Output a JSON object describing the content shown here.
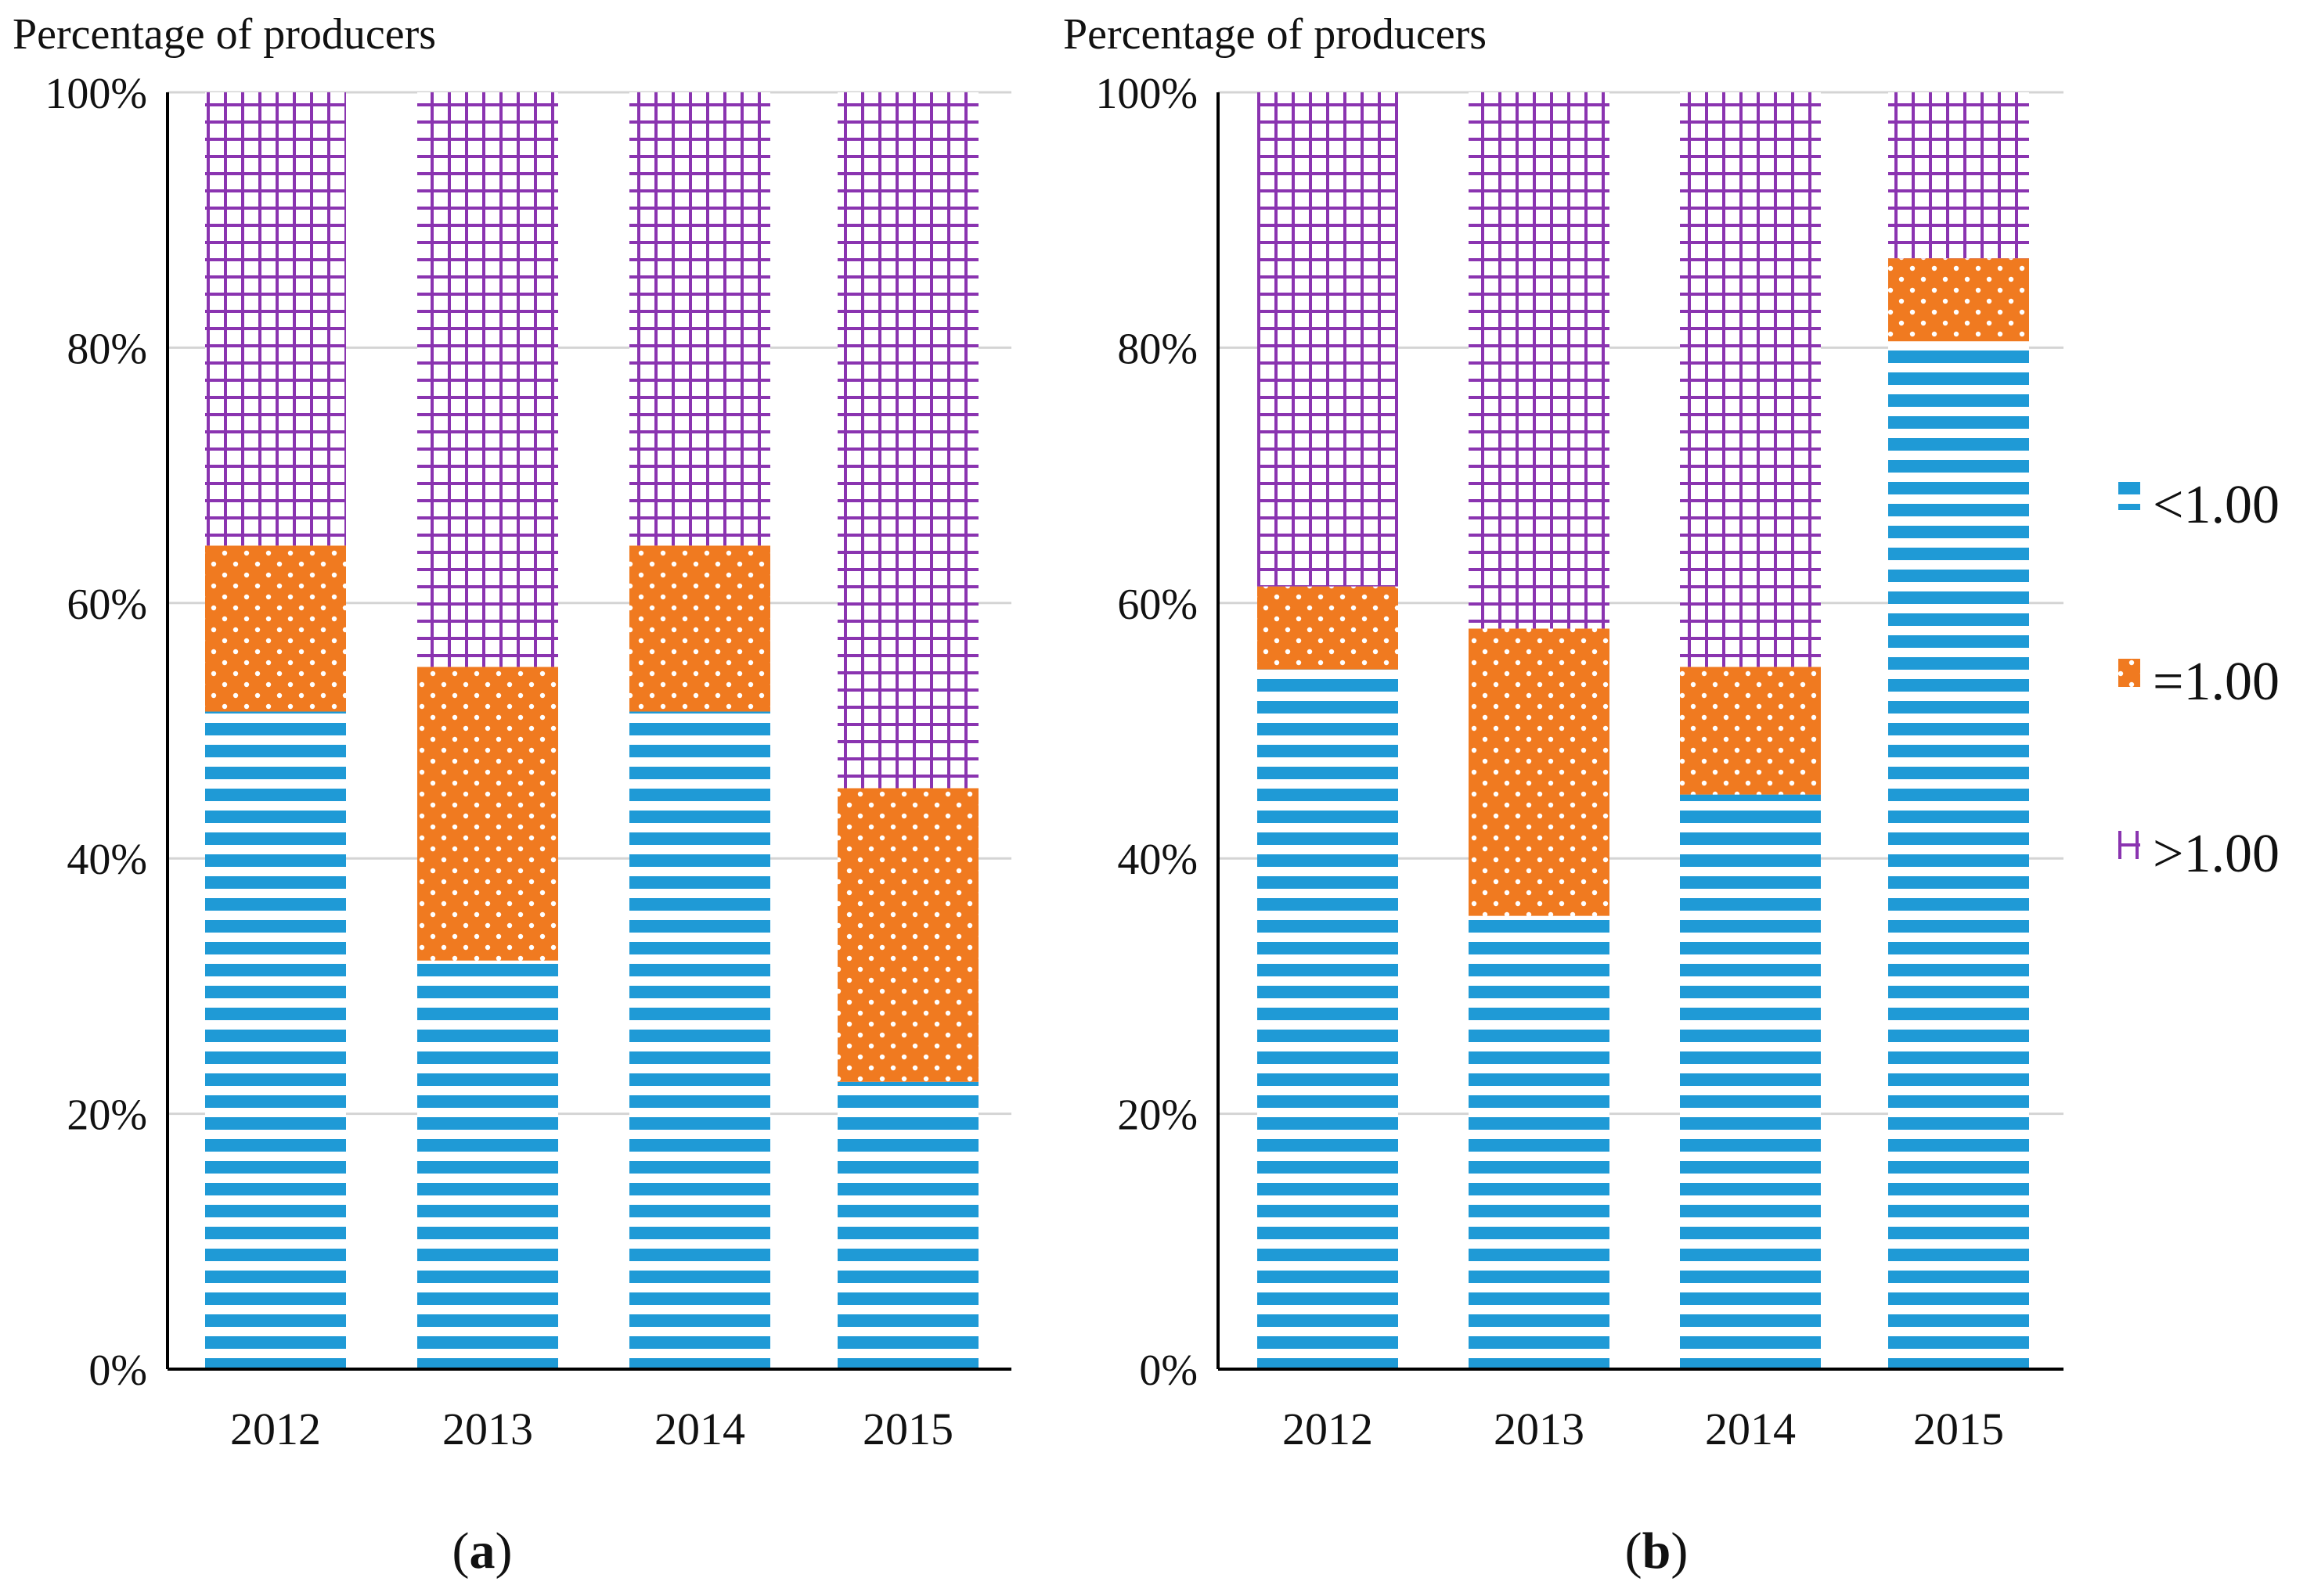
{
  "legend": [
    {
      "key": "lt",
      "label": "<1.00",
      "color": "#1f9ad6"
    },
    {
      "key": "eq",
      "label": "=1.00",
      "color": "#f07a20"
    },
    {
      "key": "gt",
      "label": ">1.00",
      "color": "#8a34b0"
    }
  ],
  "chart_data": [
    {
      "type": "bar",
      "stacked": true,
      "panel_label": "(a)",
      "panel_paren_open": "(",
      "panel_letter": "a",
      "panel_paren_close": ")",
      "ylabel": "Percentage of producers",
      "xlabel": "",
      "ylim": [
        0,
        100
      ],
      "yticks": [
        "0%",
        "20%",
        "40%",
        "60%",
        "80%",
        "100%"
      ],
      "categories": [
        "2012",
        "2013",
        "2014",
        "2015"
      ],
      "series": [
        {
          "name": "<1.00",
          "values": [
            51.5,
            32.0,
            51.5,
            22.5
          ]
        },
        {
          "name": "=1.00",
          "values": [
            13.0,
            23.0,
            13.0,
            23.0
          ]
        },
        {
          "name": ">1.00",
          "values": [
            35.5,
            45.0,
            35.5,
            54.5
          ]
        }
      ],
      "grid": true
    },
    {
      "type": "bar",
      "stacked": true,
      "panel_label": "(b)",
      "panel_paren_open": "(",
      "panel_letter": "b",
      "panel_paren_close": ")",
      "ylabel": "Percentage of producers",
      "xlabel": "",
      "ylim": [
        0,
        100
      ],
      "yticks": [
        "0%",
        "20%",
        "40%",
        "60%",
        "80%",
        "100%"
      ],
      "categories": [
        "2012",
        "2013",
        "2014",
        "2015"
      ],
      "series": [
        {
          "name": "<1.00",
          "values": [
            54.8,
            35.5,
            45.0,
            80.5
          ]
        },
        {
          "name": "=1.00",
          "values": [
            6.5,
            22.5,
            10.0,
            6.5
          ]
        },
        {
          "name": ">1.00",
          "values": [
            38.7,
            42.0,
            45.0,
            13.0
          ]
        }
      ],
      "grid": true
    }
  ]
}
